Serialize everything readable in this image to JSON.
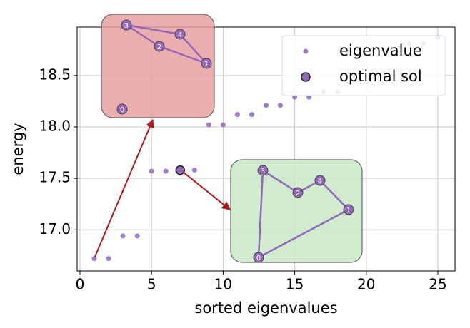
{
  "chart_data": {
    "type": "scatter",
    "xlabel": "sorted eigenvalues",
    "ylabel": "energy",
    "xlim": [
      -0.2,
      26.2
    ],
    "ylim": [
      16.6,
      18.97
    ],
    "xticks": [
      0,
      5,
      10,
      15,
      20,
      25
    ],
    "yticks": [
      {
        "value": 17,
        "label": "17.0"
      },
      17.5,
      {
        "value": 18,
        "label": "18.0"
      },
      18.5
    ],
    "grid": true,
    "legend": "upper right",
    "series": [
      {
        "name": "eigenvalue",
        "color": "#a07cd0",
        "x": [
          1,
          2,
          3,
          4,
          5,
          6,
          7,
          8,
          9,
          10,
          11,
          12,
          13,
          14,
          15,
          16,
          17,
          18,
          23,
          24,
          25
        ],
        "values": [
          16.72,
          16.72,
          16.94,
          16.94,
          17.57,
          17.57,
          17.58,
          17.58,
          18.02,
          18.02,
          18.12,
          18.12,
          18.21,
          18.21,
          18.29,
          18.29,
          18.34,
          18.34,
          18.81,
          18.81,
          18.87
        ]
      },
      {
        "name": "optimal sol",
        "color": "#9467bd",
        "edge": "#222222",
        "x": [
          7
        ],
        "values": [
          17.58
        ]
      }
    ]
  },
  "insets": [
    {
      "color": "#e8a0a0",
      "nodes": [
        "0",
        "1",
        "2",
        "3",
        "4"
      ]
    },
    {
      "color": "#c8e8c4",
      "nodes": [
        "0",
        "1",
        "2",
        "3",
        "4"
      ]
    }
  ]
}
